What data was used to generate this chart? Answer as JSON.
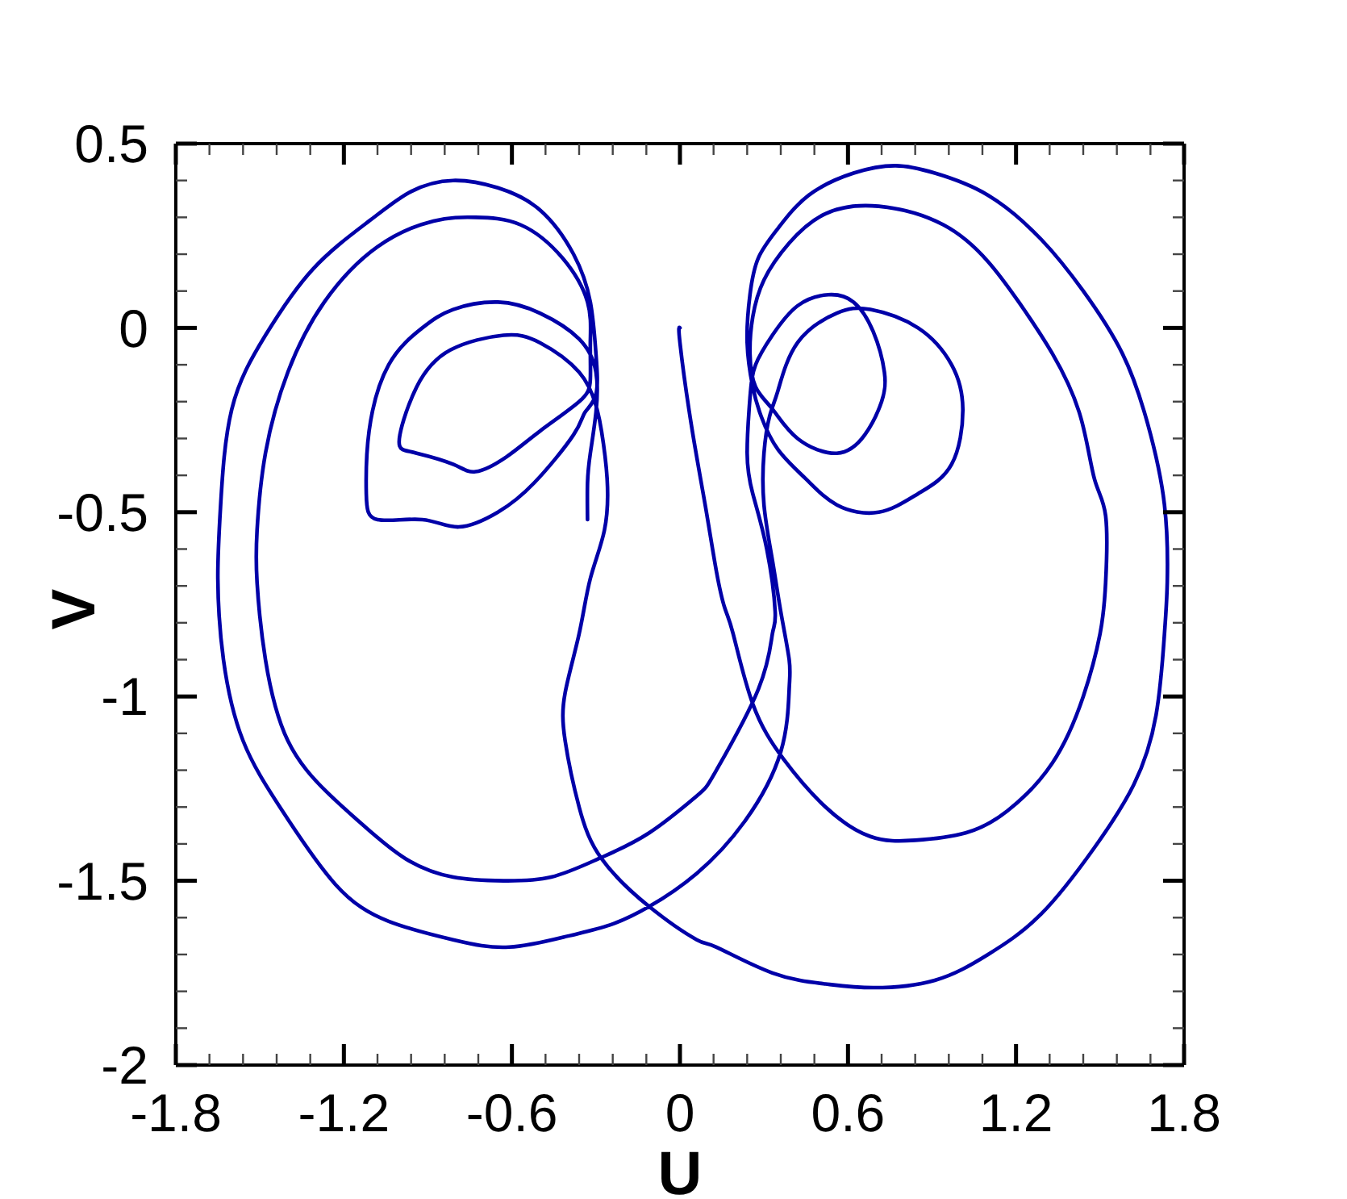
{
  "chart_data": {
    "type": "line",
    "xlabel": "U",
    "ylabel": "V",
    "xlim": [
      -1.8,
      1.8
    ],
    "ylim": [
      -2,
      0.5
    ],
    "xticks": [
      -1.8,
      {
        "value": -1.68,
        "label": null
      },
      {
        "value": -1.56,
        "label": null
      },
      {
        "value": -1.44,
        "label": null
      },
      {
        "value": -1.32,
        "label": null
      },
      -1.2,
      {
        "value": -1.08,
        "label": null
      },
      {
        "value": -0.96,
        "label": null
      },
      {
        "value": -0.84,
        "label": null
      },
      {
        "value": -0.72,
        "label": null
      },
      -0.6,
      {
        "value": -0.48,
        "label": null
      },
      {
        "value": -0.36,
        "label": null
      },
      {
        "value": -0.24,
        "label": null
      },
      {
        "value": -0.12,
        "label": null
      },
      0,
      {
        "value": 0.12,
        "label": null
      },
      {
        "value": 0.24,
        "label": null
      },
      {
        "value": 0.36,
        "label": null
      },
      {
        "value": 0.48,
        "label": null
      },
      0.6,
      {
        "value": 0.72,
        "label": null
      },
      {
        "value": 0.84,
        "label": null
      },
      {
        "value": 0.96,
        "label": null
      },
      {
        "value": 1.08,
        "label": null
      },
      1.2,
      {
        "value": 1.32,
        "label": null
      },
      {
        "value": 1.44,
        "label": null
      },
      {
        "value": 1.56,
        "label": null
      },
      {
        "value": 1.68,
        "label": null
      },
      1.8
    ],
    "yticks": [
      0.5,
      {
        "value": 0.4,
        "label": null
      },
      {
        "value": 0.3,
        "label": null
      },
      {
        "value": 0.2,
        "label": null
      },
      {
        "value": 0.1,
        "label": null
      },
      0,
      {
        "value": -0.1,
        "label": null
      },
      {
        "value": -0.2,
        "label": null
      },
      {
        "value": -0.3,
        "label": null
      },
      {
        "value": -0.4,
        "label": null
      },
      -0.5,
      {
        "value": -0.6,
        "label": null
      },
      {
        "value": -0.7,
        "label": null
      },
      {
        "value": -0.8,
        "label": null
      },
      {
        "value": -0.9,
        "label": null
      },
      -1,
      {
        "value": -1.1,
        "label": null
      },
      {
        "value": -1.2,
        "label": null
      },
      {
        "value": -1.3,
        "label": null
      },
      {
        "value": -1.4,
        "label": null
      },
      -1.5,
      {
        "value": -1.6,
        "label": null
      },
      {
        "value": -1.7,
        "label": null
      },
      {
        "value": -1.8,
        "label": null
      },
      {
        "value": -1.9,
        "label": null
      },
      -2
    ],
    "line_style": "solid",
    "series": [
      {
        "color": "#0000a8",
        "x": [
          0,
          0,
          0.04,
          0.09,
          0.13,
          0.16,
          0.19,
          0.26,
          0.37,
          0.52,
          0.68,
          0.84,
          1.02,
          1.17,
          1.33,
          1.44,
          1.5,
          1.52,
          1.52,
          1.48,
          1.43,
          1.33,
          1.21,
          1.1,
          0.94,
          0.71,
          0.52,
          0.39,
          0.3,
          0.26,
          0.25,
          0.27,
          0.33,
          0.42,
          0.56,
          0.66,
          0.72,
          0.73,
          0.69,
          0.62,
          0.53,
          0.42,
          0.33,
          0.27,
          0.25,
          0.24,
          0.26,
          0.31,
          0.34,
          0.33,
          0.28,
          0.13,
          0.06,
          -0.11,
          -0.29,
          -0.46,
          -0.63,
          -0.81,
          -0.98,
          -1.13,
          -1.26,
          -1.4,
          -1.48,
          -1.51,
          -1.51,
          -1.48,
          -1.4,
          -1.27,
          -1.08,
          -0.88,
          -0.73,
          -0.57,
          -0.42,
          -0.33,
          -0.32,
          -0.32,
          -0.36,
          -0.5,
          -0.62,
          -0.73,
          -0.81,
          -0.94,
          -0.99,
          -1,
          -0.94,
          -0.82,
          -0.63,
          -0.5,
          -0.36,
          -0.3,
          -0.28,
          -0.26,
          -0.27,
          -0.32,
          -0.36,
          -0.41,
          -0.41,
          -0.36,
          -0.28,
          -0.11,
          0.06,
          0.13,
          0.33,
          0.52,
          0.69,
          0.91,
          1.1,
          1.29,
          1.48,
          1.62,
          1.7,
          1.73,
          1.74,
          1.73,
          1.67,
          1.58,
          1.44,
          1.29,
          1.1,
          0.91,
          0.77,
          0.62,
          0.46,
          0.35,
          0.28,
          0.25,
          0.24,
          0.26,
          0.29,
          0.35,
          0.45,
          0.56,
          0.71,
          0.85,
          0.97,
          1.01,
          0.97,
          0.85,
          0.68,
          0.56,
          0.42,
          0.35,
          0.32,
          0.3,
          0.3,
          0.33,
          0.36,
          0.39,
          0.39,
          0.36,
          0.23,
          0.06,
          -0.11,
          -0.25,
          -0.4,
          -0.61,
          -0.81,
          -1.04,
          -1.23,
          -1.42,
          -1.56,
          -1.63,
          -1.65,
          -1.64,
          -1.6,
          -1.48,
          -1.31,
          -1.11,
          -0.96,
          -0.81,
          -0.65,
          -0.5,
          -0.38,
          -0.32,
          -0.3,
          -0.3,
          -0.34,
          -0.38,
          -0.52,
          -0.65,
          -0.79,
          -0.92,
          -1.08,
          -1.12,
          -1.11,
          -1.04,
          -0.92,
          -0.81,
          -0.65,
          -0.5,
          -0.36,
          -0.3,
          -0.3,
          -0.32,
          -0.33,
          -0.33
        ],
        "values": [
          0,
          -0.04,
          -0.26,
          -0.48,
          -0.66,
          -0.76,
          -0.83,
          -1.02,
          -1.17,
          -1.3,
          -1.38,
          -1.39,
          -1.37,
          -1.31,
          -1.18,
          -1,
          -0.83,
          -0.69,
          -0.51,
          -0.41,
          -0.24,
          -0.07,
          0.07,
          0.18,
          0.28,
          0.33,
          0.31,
          0.23,
          0.13,
          0.03,
          -0.07,
          -0.16,
          -0.22,
          -0.3,
          -0.34,
          -0.29,
          -0.2,
          -0.12,
          -0.01,
          0.07,
          0.09,
          0.06,
          -0.02,
          -0.1,
          -0.19,
          -0.34,
          -0.45,
          -0.6,
          -0.77,
          -0.83,
          -0.98,
          -1.2,
          -1.27,
          -1.37,
          -1.44,
          -1.49,
          -1.5,
          -1.49,
          -1.44,
          -1.35,
          -1.26,
          -1.12,
          -0.9,
          -0.69,
          -0.55,
          -0.34,
          -0.12,
          0.07,
          0.22,
          0.29,
          0.3,
          0.28,
          0.19,
          0.07,
          -0.04,
          -0.14,
          -0.2,
          -0.28,
          -0.35,
          -0.39,
          -0.37,
          -0.34,
          -0.33,
          -0.29,
          -0.16,
          -0.06,
          -0.02,
          -0.04,
          -0.12,
          -0.21,
          -0.28,
          -0.41,
          -0.55,
          -0.68,
          -0.83,
          -0.99,
          -1.12,
          -1.3,
          -1.44,
          -1.57,
          -1.66,
          -1.68,
          -1.75,
          -1.78,
          -1.79,
          -1.77,
          -1.7,
          -1.59,
          -1.41,
          -1.24,
          -1.05,
          -0.83,
          -0.69,
          -0.48,
          -0.26,
          -0.07,
          0.1,
          0.24,
          0.36,
          0.42,
          0.44,
          0.42,
          0.36,
          0.27,
          0.19,
          0.09,
          -0.04,
          -0.16,
          -0.24,
          -0.33,
          -0.41,
          -0.48,
          -0.5,
          -0.45,
          -0.37,
          -0.22,
          -0.1,
          0,
          0.05,
          0.04,
          -0.04,
          -0.17,
          -0.24,
          -0.34,
          -0.48,
          -0.63,
          -0.77,
          -0.9,
          -0.98,
          -1.15,
          -1.34,
          -1.48,
          -1.57,
          -1.62,
          -1.65,
          -1.68,
          -1.66,
          -1.61,
          -1.51,
          -1.31,
          -1.12,
          -0.9,
          -0.68,
          -0.48,
          -0.22,
          -0.02,
          0.16,
          0.29,
          0.37,
          0.4,
          0.38,
          0.32,
          0.2,
          0.07,
          -0.07,
          -0.18,
          -0.23,
          -0.29,
          -0.42,
          -0.5,
          -0.54,
          -0.52,
          -0.52,
          -0.45,
          -0.28,
          -0.1,
          0,
          0.05,
          0.07,
          0.04,
          -0.03,
          -0.12,
          -0.23,
          -0.34,
          -0.42,
          -0.52
        ]
      }
    ]
  }
}
